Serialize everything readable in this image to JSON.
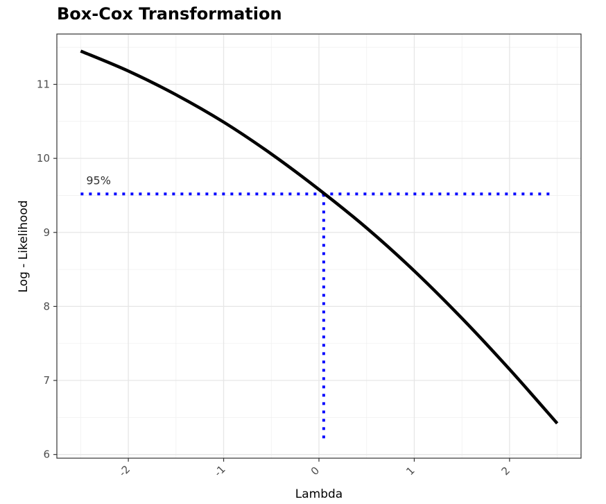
{
  "chart_data": {
    "type": "line",
    "title": "Box-Cox Transformation",
    "xlabel": "Lambda",
    "ylabel": "Log - Likelihood",
    "xlim": [
      -2.75,
      2.75
    ],
    "ylim": [
      5.95,
      11.68
    ],
    "x_ticks": [
      -2,
      -1,
      0,
      1,
      2
    ],
    "y_ticks": [
      6,
      7,
      8,
      9,
      10,
      11
    ],
    "grid": true,
    "series": [
      {
        "x": [
          -2.5,
          -2.0,
          -1.5,
          -1.0,
          -0.5,
          0.0,
          0.5,
          1.0,
          1.5,
          2.0,
          2.5
        ],
        "values": [
          11.45,
          11.18,
          10.86,
          10.49,
          10.06,
          9.58,
          9.06,
          8.48,
          7.84,
          7.15,
          6.42
        ],
        "color": "#000000"
      }
    ],
    "reference_lines": {
      "ci_level": 9.52,
      "ci_label": "95%",
      "hline_x_range": [
        -2.5,
        2.45
      ],
      "vline_x": 0.05,
      "vline_y_bottom": 6.2,
      "color": "#0000ff"
    }
  }
}
